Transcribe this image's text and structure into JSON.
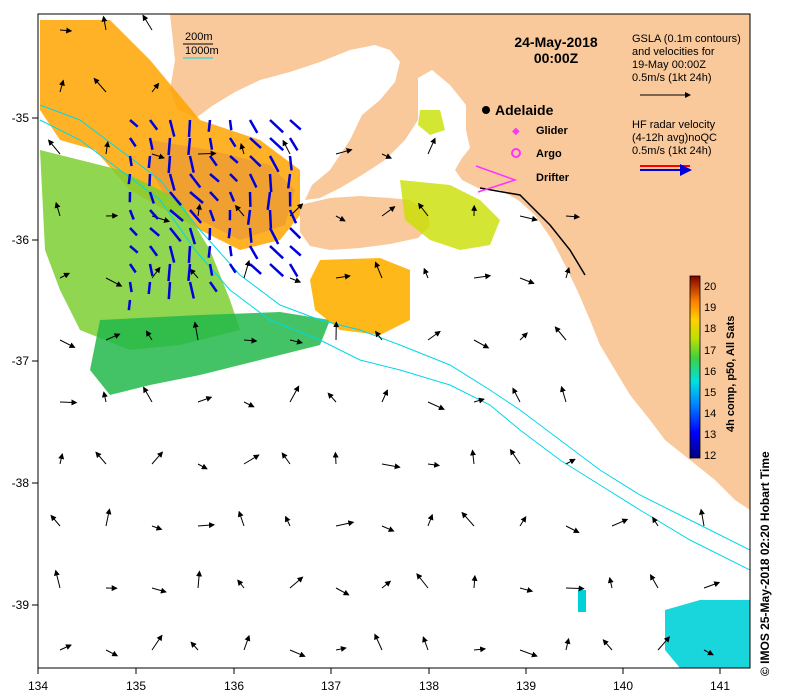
{
  "map": {
    "date_line": "24-May-2018",
    "time_line": "00:00Z",
    "city": "Adelaide",
    "symbols": {
      "glider": "Glider",
      "argo": "Argo",
      "drifter": "Drifter"
    },
    "contours": {
      "c200": "200m",
      "c1000": "1000m"
    },
    "gsla": {
      "line1": "GSLA (0.1m contours)",
      "line2": "and velocities for",
      "line3": "19-May 00:00Z",
      "line4": "0.5m/s (1kt 24h)"
    },
    "hf": {
      "line1": "HF radar velocity",
      "line2": "(4-12h avg)noQC",
      "line3": "0.5m/s (1kt 24h)"
    },
    "colorbar": {
      "label": "4h comp, p50, All Sats",
      "ticks": [
        "20",
        "19",
        "18",
        "17",
        "16",
        "15",
        "14",
        "13",
        "12"
      ]
    },
    "x_ticks": [
      "134",
      "135",
      "136",
      "137",
      "138",
      "139",
      "140",
      "141"
    ],
    "y_ticks": [
      "-35",
      "-36",
      "-37",
      "-38",
      "-39"
    ],
    "credit": "© IMOS 25-May-2018 02:20 Hobart Time",
    "colors": {
      "land": "#f9c99b",
      "shelf_contour": "#00d8e8",
      "radar_arrows": "#0000dd",
      "glider": "#ff33ff",
      "argo": "#ff33ff",
      "drifter": "#ff33ff"
    }
  }
}
